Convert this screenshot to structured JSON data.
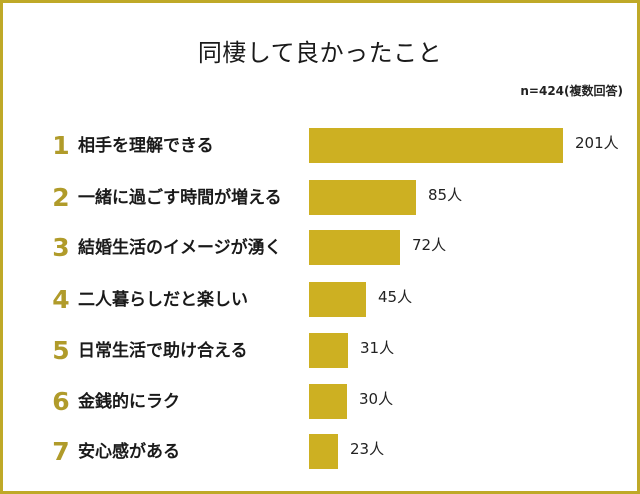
{
  "title": "同棲して良かったこと",
  "note": "n=424(複数回答)",
  "colors": {
    "border": "#BFA927",
    "bar": "#CDB022",
    "rank": "#B09B2A",
    "text": "#1a1a1a"
  },
  "chart_data": {
    "type": "bar",
    "orientation": "horizontal",
    "title": "同棲して良かったこと",
    "subtitle": "n=424(複数回答)",
    "categories": [
      "相手を理解できる",
      "一緒に過ごす時間が増える",
      "結婚生活のイメージが湧く",
      "二人暮らしだと楽しい",
      "日常生活で助け合える",
      "金銭的にラク",
      "安心感がある"
    ],
    "values": [
      201,
      85,
      72,
      45,
      31,
      30,
      23
    ],
    "unit": "人",
    "xlabel": "",
    "ylabel": "",
    "grid": false,
    "legend": null
  },
  "rows": [
    {
      "rank": "1",
      "label": "相手を理解できる",
      "value": "201人"
    },
    {
      "rank": "2",
      "label": "一緒に過ごす時間が増える",
      "value": "85人"
    },
    {
      "rank": "3",
      "label": "結婚生活のイメージが湧く",
      "value": "72人"
    },
    {
      "rank": "4",
      "label": "二人暮らしだと楽しい",
      "value": "45人"
    },
    {
      "rank": "5",
      "label": "日常生活で助け合える",
      "value": "31人"
    },
    {
      "rank": "6",
      "label": "金銭的にラク",
      "value": "30人"
    },
    {
      "rank": "7",
      "label": "安心感がある",
      "value": "23人"
    }
  ]
}
